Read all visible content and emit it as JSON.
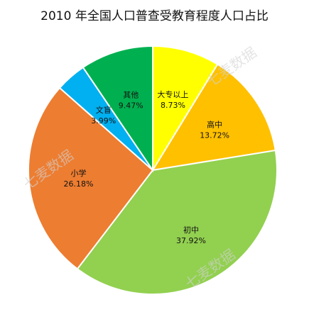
{
  "chart_data": {
    "type": "pie",
    "title": "2010 年全国人口普查受教育程度人口占比",
    "categories": [
      "大专以上",
      "高中",
      "初中",
      "小学",
      "文盲",
      "其他"
    ],
    "values": [
      8.73,
      13.72,
      37.92,
      26.18,
      3.99,
      9.47
    ],
    "value_labels": [
      "8.73%",
      "13.72%",
      "37.92%",
      "26.18%",
      "3.99%",
      "9.47%"
    ],
    "colors": [
      "#ffff00",
      "#ffc000",
      "#92d050",
      "#ed7d31",
      "#00b0f0",
      "#00b050"
    ],
    "start_angle": "12 o'clock",
    "direction": "clockwise",
    "legend": "none",
    "watermark_text": "七麦数据"
  }
}
